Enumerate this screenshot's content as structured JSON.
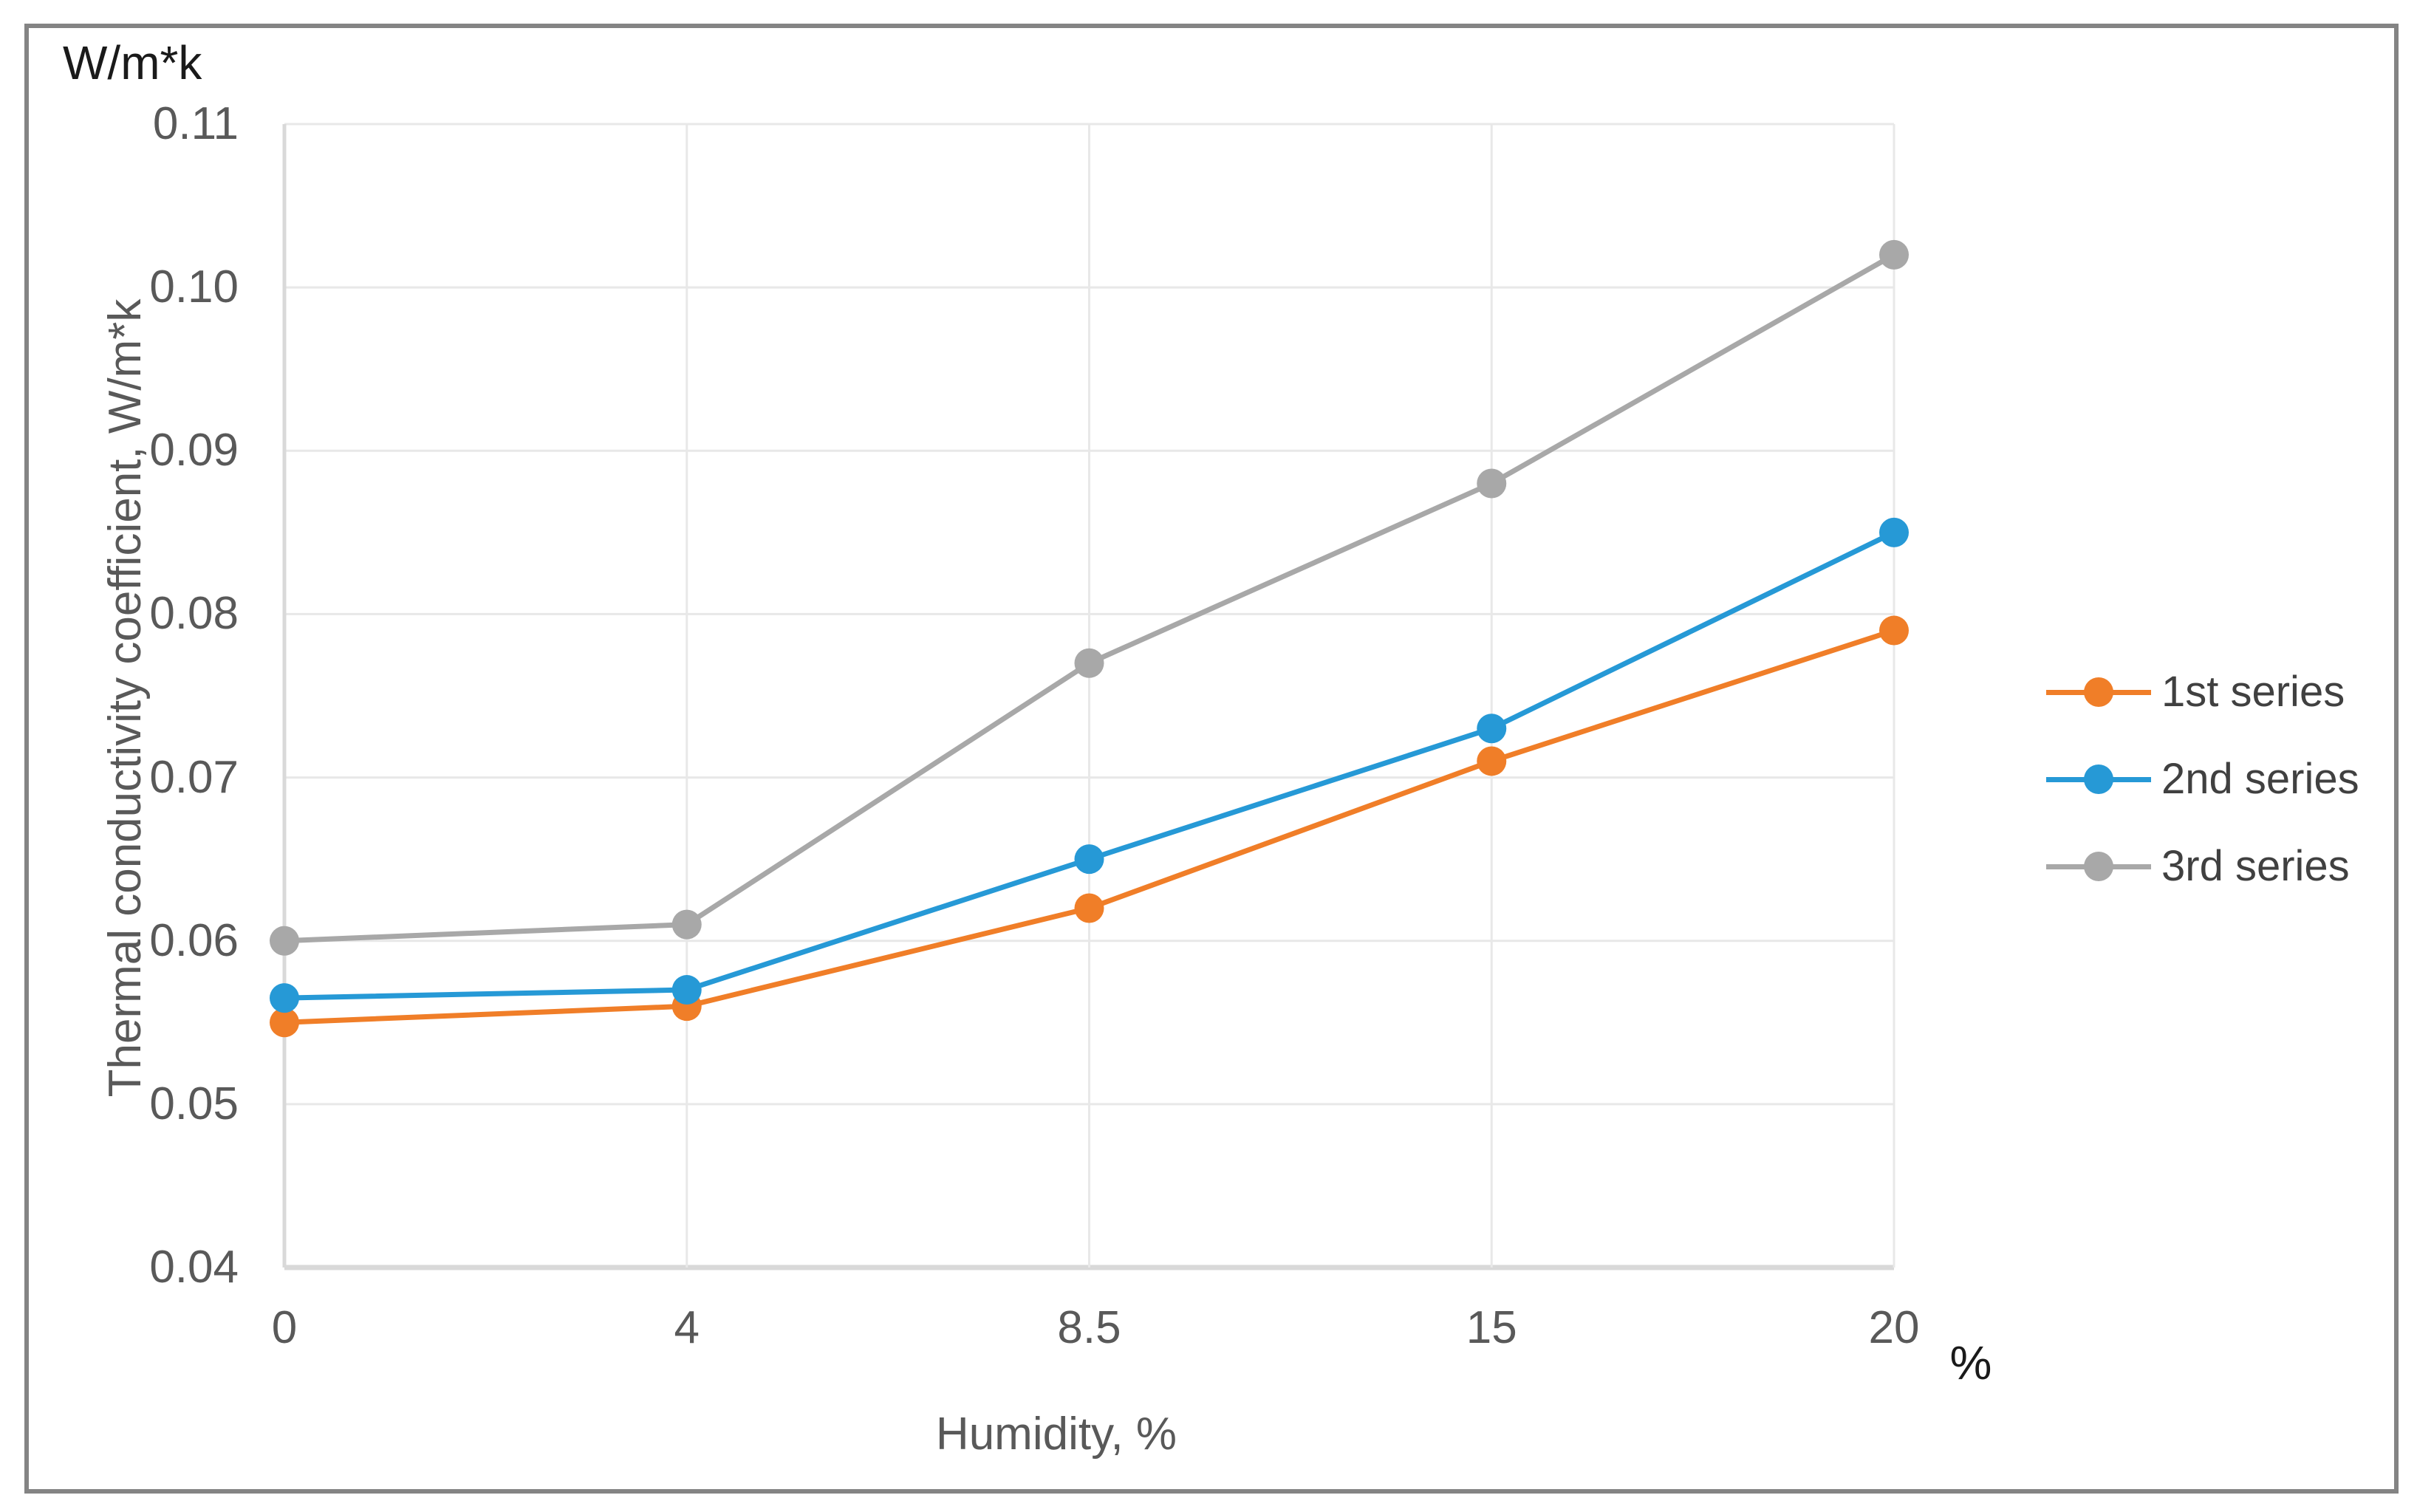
{
  "figure": {
    "top_left_unit_label": "W/m*k",
    "x_axis_unit_label": "%"
  },
  "chart_data": {
    "type": "line",
    "title": "",
    "xlabel": "Humidity, %",
    "ylabel": "Thermal conductivity coefficient, W/m*k",
    "categories": [
      "0",
      "4",
      "8.5",
      "15",
      "20"
    ],
    "series": [
      {
        "name": "1st series",
        "color": "#F07E28",
        "values": [
          0.055,
          0.056,
          0.062,
          0.071,
          0.079
        ]
      },
      {
        "name": "2nd series",
        "color": "#2699D6",
        "values": [
          0.0565,
          0.057,
          0.065,
          0.073,
          0.085
        ]
      },
      {
        "name": "3rd series",
        "color": "#A8A8A8",
        "values": [
          0.06,
          0.061,
          0.077,
          0.088,
          0.102
        ]
      }
    ],
    "ylim": [
      0.04,
      0.11
    ],
    "y_tick_step": 0.01,
    "y_tick_labels": [
      "0.04",
      "0.05",
      "0.06",
      "0.07",
      "0.08",
      "0.09",
      "0.10",
      "0.11"
    ],
    "grid": true,
    "legend_position": "right",
    "marker": "circle"
  },
  "style": {
    "background": "#FFFFFF",
    "border_color": "#848484",
    "gridline_color": "#E8E8E8",
    "axis_line_color": "#D9D9D9",
    "tick_label_color": "#595959",
    "axis_title_color": "#595959",
    "unit_label_color": "#1A1A1A",
    "legend_text_color": "#404040"
  }
}
